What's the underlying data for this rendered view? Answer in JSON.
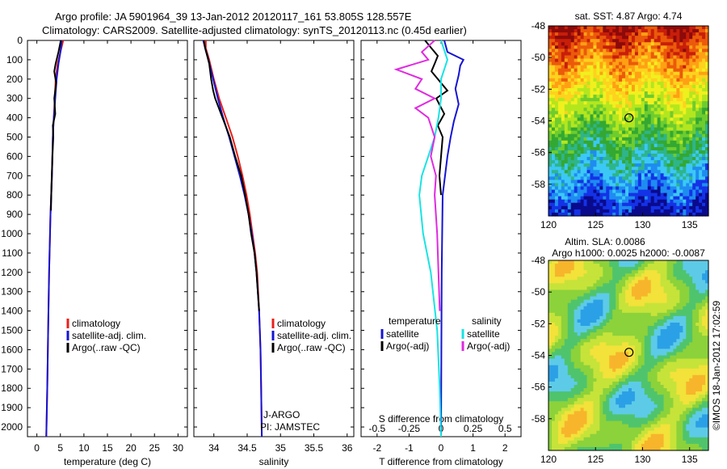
{
  "header": {
    "line1": "Argo profile: JA 5901964_39 13-Jan-2012 20120117_161 53.805S 128.557E",
    "line2": "Climatology: CARS2009. Satellite-adjusted climatology: synTS_20120113.nc (0.45d earlier)"
  },
  "colors": {
    "climatology": "#e8201a",
    "satellite": "#1414d2",
    "argo": "#000000",
    "sat_salinity": "#19e3e3",
    "argo_salinity": "#e02ae0"
  },
  "depth_axis": {
    "ylim": [
      0,
      2050
    ],
    "ticks": [
      "0",
      "100",
      "200",
      "300",
      "400",
      "500",
      "600",
      "700",
      "800",
      "900",
      "1000",
      "1100",
      "1200",
      "1300",
      "1400",
      "1500",
      "1600",
      "1700",
      "1800",
      "1900",
      "2000"
    ]
  },
  "chart_data": [
    {
      "type": "line",
      "id": "temperature",
      "xlabel": "temperature (deg C)",
      "xlim": [
        -2,
        32
      ],
      "xticks": [
        "0",
        "5",
        "10",
        "15",
        "20",
        "25",
        "30"
      ],
      "legend": [
        "climatology",
        "satellite-adj. clim.",
        "Argo(..raw -QC)"
      ],
      "series": [
        {
          "name": "climatology",
          "depth": [
            0,
            60,
            120,
            200,
            300,
            400,
            500,
            700,
            900,
            1200,
            1500,
            1800,
            2050
          ],
          "values": [
            5.6,
            5.0,
            4.4,
            4.0,
            3.8,
            3.6,
            3.4,
            3.2,
            2.9,
            2.6,
            2.4,
            2.2,
            2.0
          ]
        },
        {
          "name": "satellite-adj. clim.",
          "depth": [
            0,
            60,
            120,
            200,
            300,
            400,
            500,
            700,
            900,
            1200,
            1500,
            1800,
            2050
          ],
          "values": [
            5.3,
            5.0,
            4.6,
            4.2,
            3.9,
            3.6,
            3.4,
            3.2,
            2.9,
            2.6,
            2.4,
            2.2,
            2.0
          ]
        },
        {
          "name": "Argo(..raw -QC)",
          "depth": [
            0,
            60,
            120,
            160,
            220,
            300,
            380,
            440,
            500,
            600,
            750,
            880
          ],
          "values": [
            5.1,
            4.6,
            4.0,
            3.7,
            4.1,
            3.7,
            3.9,
            3.4,
            3.5,
            3.3,
            3.1,
            3.0
          ]
        }
      ]
    },
    {
      "type": "line",
      "id": "salinity",
      "xlabel": "salinity",
      "xlim": [
        33.7,
        36.1
      ],
      "xticks": [
        "34",
        "34.5",
        "35",
        "35.5",
        "36"
      ],
      "legend": [
        "climatology",
        "satellite-adj. clim.",
        "Argo(..raw -QC)"
      ],
      "annotations": [
        "J-ARGO",
        "PI: JAMSTEC"
      ],
      "series": [
        {
          "name": "climatology",
          "depth": [
            0,
            40,
            100,
            200,
            300,
            400,
            500,
            600,
            700,
            800,
            900,
            1000,
            1100,
            1200,
            1400,
            1600,
            1800,
            2050
          ],
          "values": [
            33.88,
            33.88,
            33.93,
            34.0,
            34.08,
            34.18,
            34.28,
            34.36,
            34.43,
            34.49,
            34.54,
            34.58,
            34.62,
            34.65,
            34.68,
            34.7,
            34.71,
            34.72
          ]
        },
        {
          "name": "satellite-adj. clim.",
          "depth": [
            0,
            40,
            100,
            200,
            300,
            400,
            500,
            600,
            700,
            800,
            900,
            1000,
            1100,
            1200,
            1400,
            1600,
            1800,
            2050
          ],
          "values": [
            33.84,
            33.87,
            33.92,
            33.99,
            34.06,
            34.14,
            34.23,
            34.31,
            34.39,
            34.46,
            34.52,
            34.57,
            34.61,
            34.64,
            34.68,
            34.7,
            34.71,
            34.72
          ]
        },
        {
          "name": "Argo(..raw -QC)",
          "depth": [
            0,
            40,
            80,
            120,
            200,
            260,
            300,
            400,
            500,
            600,
            700,
            800,
            900,
            1000,
            1100,
            1200,
            1400
          ],
          "values": [
            33.85,
            33.87,
            33.9,
            33.93,
            33.96,
            33.99,
            34.02,
            34.13,
            34.24,
            34.32,
            34.41,
            34.47,
            34.52,
            34.56,
            34.61,
            34.64,
            34.68
          ]
        }
      ]
    },
    {
      "type": "line",
      "id": "difference",
      "xlabel": "T difference from climatology",
      "xlabel_top": "S difference from climatology",
      "xlim": [
        -2.5,
        2.5
      ],
      "xticks": [
        "-2",
        "-1",
        "0",
        "1",
        "2"
      ],
      "xticks_top": [
        "-0.5",
        "-0.25",
        "0",
        "0.25",
        "0.5"
      ],
      "legend_left_title": "temperature",
      "legend_left": [
        "satellite",
        "Argo(-adj)"
      ],
      "legend_right_title": "salinity",
      "legend_right": [
        "satellite",
        "Argo(-adj)"
      ],
      "series": [
        {
          "name": "temperature satellite",
          "depth": [
            0,
            60,
            100,
            130,
            180,
            250,
            330,
            420,
            500,
            600,
            800,
            1200,
            1600,
            2050
          ],
          "values": [
            0.1,
            0.2,
            0.7,
            0.6,
            0.55,
            0.45,
            0.55,
            0.4,
            0.3,
            0.2,
            0.05,
            0.02,
            0.01,
            0.0
          ]
        },
        {
          "name": "temperature Argo(-adj)",
          "depth": [
            0,
            40,
            80,
            120,
            160,
            200,
            260,
            300,
            380,
            440,
            500,
            600,
            700,
            800
          ],
          "values": [
            -0.5,
            -0.3,
            -0.1,
            -0.2,
            -0.3,
            -0.1,
            0.2,
            -0.15,
            0.1,
            -0.1,
            0.05,
            0.0,
            -0.05,
            0.0
          ]
        },
        {
          "name": "salinity satellite",
          "depth": [
            0,
            100,
            200,
            300,
            400,
            500,
            600,
            700,
            800,
            1000,
            1200,
            1500,
            1800,
            2050
          ],
          "values": [
            0.0,
            0.05,
            0.0,
            0.0,
            -0.02,
            -0.05,
            -0.1,
            -0.15,
            -0.17,
            -0.14,
            -0.08,
            -0.03,
            -0.01,
            0.0
          ]
        },
        {
          "name": "salinity Argo(-adj)",
          "depth": [
            0,
            60,
            100,
            150,
            200,
            250,
            300,
            350,
            400,
            500,
            600,
            700,
            800,
            1000,
            1200,
            1400
          ],
          "values": [
            -0.05,
            -0.15,
            -0.1,
            -0.35,
            -0.15,
            -0.2,
            -0.05,
            -0.2,
            -0.1,
            -0.05,
            -0.08,
            -0.04,
            -0.05,
            -0.03,
            -0.02,
            -0.01
          ]
        }
      ]
    },
    {
      "type": "heatmap",
      "id": "sst_map",
      "title": "sat. SST: 4.87  Argo: 4.74",
      "xlim": [
        120,
        137
      ],
      "ylim": [
        -60,
        -48
      ],
      "xticks": [
        "120",
        "125",
        "130",
        "135"
      ],
      "yticks": [
        "-48",
        "-50",
        "-52",
        "-54",
        "-56",
        "-58"
      ],
      "marker": {
        "lon": 128.557,
        "lat": -53.805
      }
    },
    {
      "type": "heatmap",
      "id": "sla_map",
      "title_line1": "Altim. SLA: 0.0086",
      "title_line2": "Argo h1000: 0.0025 h2000: -0.0087",
      "xlim": [
        120,
        137
      ],
      "ylim": [
        -60,
        -48
      ],
      "xticks": [
        "120",
        "125",
        "130",
        "135"
      ],
      "yticks": [
        "-48",
        "-50",
        "-52",
        "-54",
        "-56",
        "-58"
      ],
      "marker": {
        "lon": 128.557,
        "lat": -53.805
      }
    }
  ],
  "credit": "©IMOS 18-Jan-2012 17:02:59"
}
